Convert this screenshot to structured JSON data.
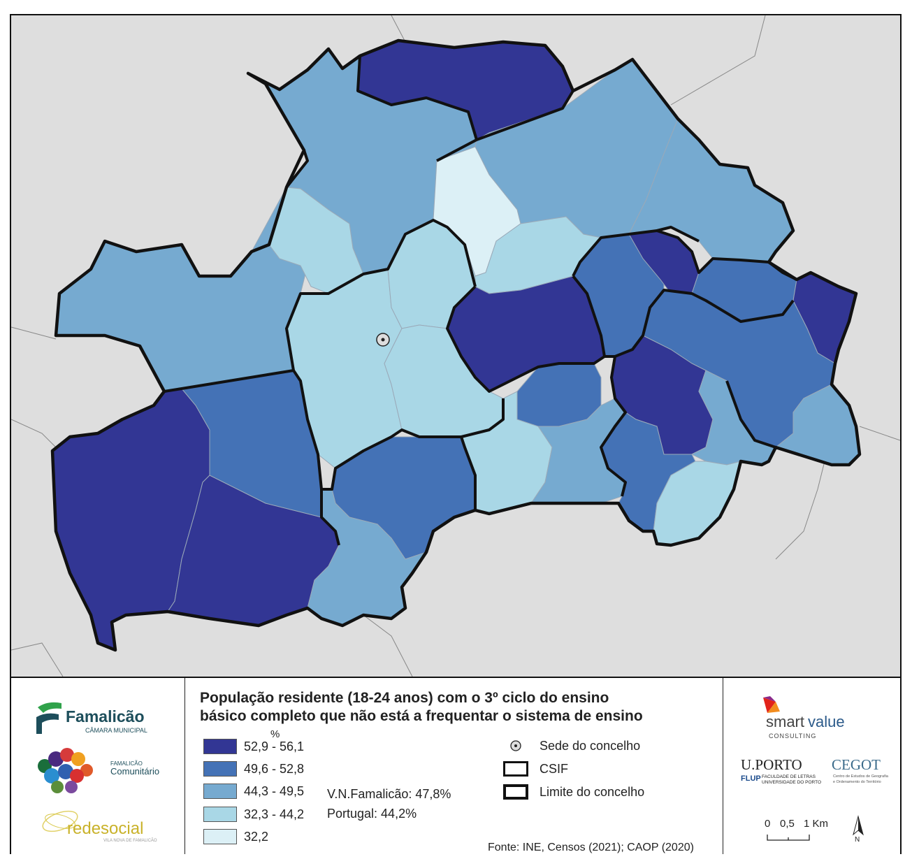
{
  "title_line1": "População residente (18-24 anos) com o 3º ciclo do ensino",
  "title_line2": "básico completo que não está a frequentar o sistema de ensino",
  "legend_unit": "%",
  "legend": [
    {
      "label": "52,9 - 56,1",
      "color": "#323694"
    },
    {
      "label": "49,6 - 52,8",
      "color": "#4472b6"
    },
    {
      "label": "44,3 - 49,5",
      "color": "#76aad0"
    },
    {
      "label": "32,3 - 44,2",
      "color": "#a9d7e6"
    },
    {
      "label": "32,2",
      "color": "#dcf0f6"
    }
  ],
  "stats": {
    "municipality": "V.N.Famalicão: 47,8%",
    "country": "Portugal: 44,2%"
  },
  "symbols": {
    "seat": "Sede do concelho",
    "csif": "CSIF",
    "boundary": "Limite do concelho"
  },
  "source": "Fonte: INE, Censos (2021); CAOP (2020)",
  "logos": {
    "famalicao": "Famalicão",
    "famalicao_sub": "CÂMARA MUNICIPAL",
    "comunitario_1": "FAMALICÃO",
    "comunitario_2": "Comunitário",
    "redesocial": "redesocial",
    "redesocial_sub": "VILA NOVA DE FAMALICÃO",
    "smart": "smart",
    "value": "value",
    "consulting": "CONSULTING",
    "uporto": "U.PORTO",
    "flup": "FLUP",
    "flup_text1": "FACULDADE DE LETRAS",
    "flup_text2": "UNIVERSIDADE DO PORTO",
    "cegot": "CEGOT",
    "cegot_text1": "Centro de Estudos de Geografia",
    "cegot_text2": "e Ordenamento do Território"
  },
  "scale": {
    "t0": "0",
    "t1": "0,5",
    "t2": "1 Km"
  },
  "north": "N",
  "colors": {
    "background": "#dedede",
    "outline": "#111111"
  }
}
